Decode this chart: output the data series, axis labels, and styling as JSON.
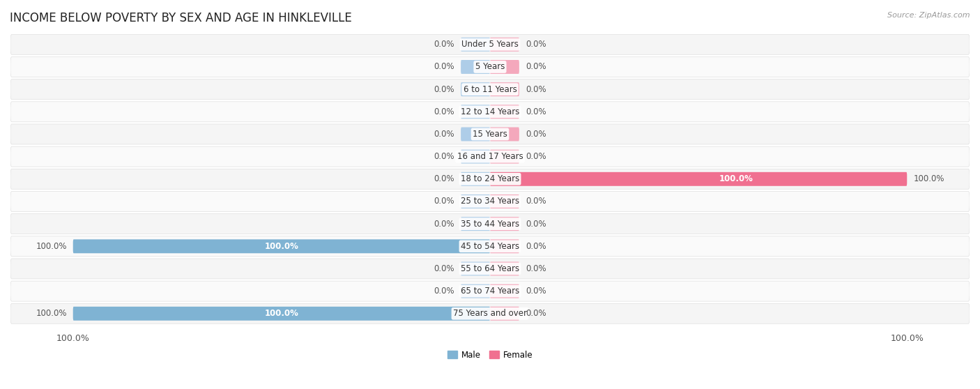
{
  "title": "INCOME BELOW POVERTY BY SEX AND AGE IN HINKLEVILLE",
  "source": "Source: ZipAtlas.com",
  "categories": [
    "Under 5 Years",
    "5 Years",
    "6 to 11 Years",
    "12 to 14 Years",
    "15 Years",
    "16 and 17 Years",
    "18 to 24 Years",
    "25 to 34 Years",
    "35 to 44 Years",
    "45 to 54 Years",
    "55 to 64 Years",
    "65 to 74 Years",
    "75 Years and over"
  ],
  "male_values": [
    0.0,
    0.0,
    0.0,
    0.0,
    0.0,
    0.0,
    0.0,
    0.0,
    0.0,
    100.0,
    0.0,
    0.0,
    100.0
  ],
  "female_values": [
    0.0,
    0.0,
    0.0,
    0.0,
    0.0,
    0.0,
    100.0,
    0.0,
    0.0,
    0.0,
    0.0,
    0.0,
    0.0
  ],
  "male_color": "#7fb3d3",
  "female_color": "#f07090",
  "male_stub_color": "#aecde8",
  "female_stub_color": "#f4a8bc",
  "row_color_even": "#f5f5f5",
  "row_color_odd": "#fafafa",
  "max_value": 100.0,
  "stub_size": 7.0,
  "bar_height": 0.62,
  "title_fontsize": 12,
  "source_fontsize": 8,
  "tick_fontsize": 9,
  "label_fontsize": 8.5,
  "cat_fontsize": 8.5,
  "legend_male_color": "#7fb3d3",
  "legend_female_color": "#f07090"
}
